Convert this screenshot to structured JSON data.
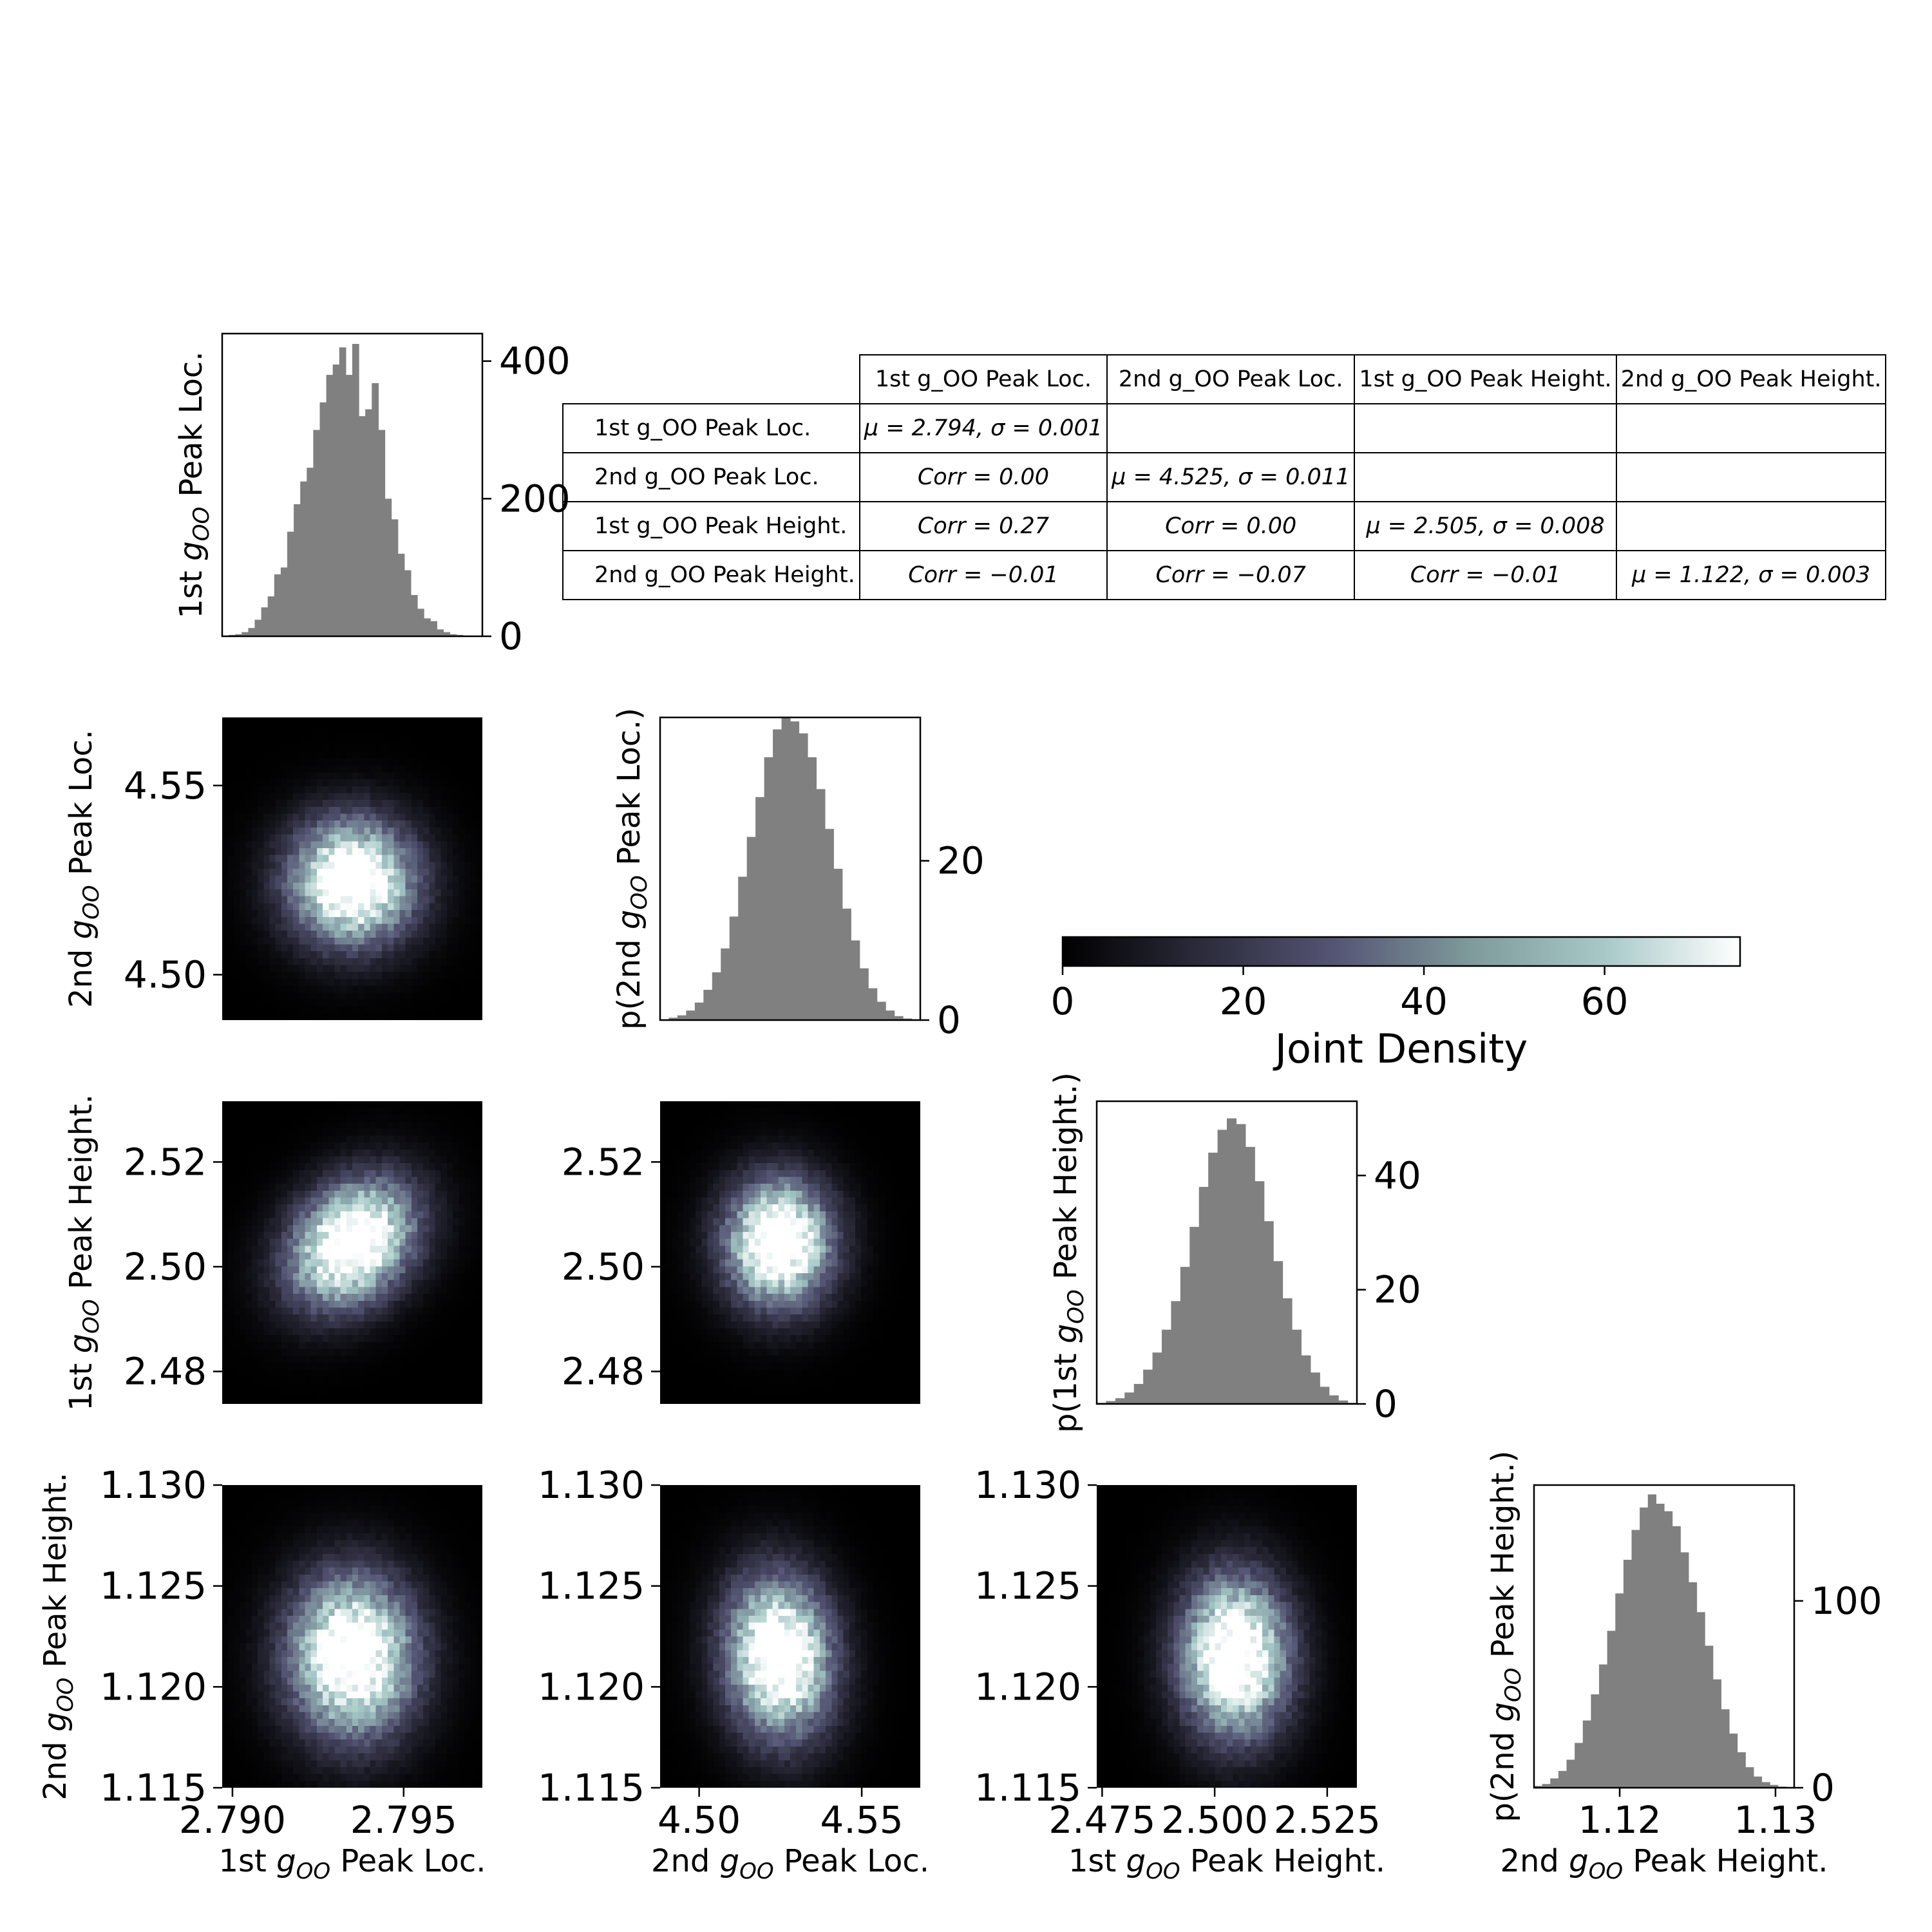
{
  "chart_data": {
    "type": "corner-plot",
    "variables": [
      "1st g_OO Peak Loc.",
      "2nd g_OO Peak Loc.",
      "1st g_OO Peak Height.",
      "2nd g_OO Peak Height."
    ],
    "diagonal_histograms": [
      {
        "variable": "1st g_OO Peak Loc.",
        "ylabel": "1st g_OO Peak Loc.",
        "y_ticks": [
          0,
          200,
          400
        ],
        "ylim": [
          0,
          440
        ],
        "xlim": [
          2.7897,
          2.7973
        ],
        "bin_heights": [
          0,
          2,
          3,
          6,
          12,
          24,
          42,
          58,
          90,
          100,
          152,
          192,
          225,
          245,
          300,
          340,
          380,
          395,
          420,
          380,
          425,
          320,
          330,
          368,
          300,
          200,
          170,
          120,
          96,
          60,
          40,
          26,
          22,
          10,
          6,
          3,
          2,
          1,
          0,
          0
        ],
        "color": "#808080"
      },
      {
        "variable": "2nd g_OO Peak Loc.",
        "ylabel": "p(2nd g_OO Peak Loc.)",
        "y_ticks": [
          0,
          20
        ],
        "ylim": [
          0,
          38
        ],
        "xlim": [
          4.488,
          4.568
        ],
        "bin_heights": [
          0.1,
          0.3,
          0.6,
          1.2,
          2.2,
          3.8,
          6,
          9,
          13,
          18,
          23,
          28,
          33,
          36.5,
          38,
          37.5,
          36,
          33,
          29,
          24,
          19,
          14,
          10,
          6.5,
          4,
          2.3,
          1.2,
          0.5,
          0.2,
          0.1
        ],
        "color": "#808080"
      },
      {
        "variable": "1st g_OO Peak Height.",
        "ylabel": "p(1st g_OO Peak Height.)",
        "y_ticks": [
          0,
          20,
          40
        ],
        "ylim": [
          0,
          53
        ],
        "xlim": [
          2.4738,
          2.5316
        ],
        "bin_heights": [
          0.2,
          0.5,
          1,
          2,
          3.5,
          6,
          9,
          13,
          18,
          24,
          31,
          38,
          44,
          48,
          50,
          49,
          45,
          39,
          32,
          25,
          18.5,
          13,
          8.5,
          5.5,
          3,
          1.5,
          0.6,
          0.2
        ],
        "color": "#808080"
      },
      {
        "variable": "2nd g_OO Peak Height.",
        "ylabel": "p(2nd g_OO Peak Height.)",
        "y_ticks": [
          0,
          100
        ],
        "ylim": [
          0,
          162
        ],
        "xlim": [
          1.1145,
          1.1312
        ],
        "bin_heights": [
          1,
          2,
          5,
          9,
          15,
          24,
          36,
          50,
          66,
          84,
          104,
          122,
          138,
          150,
          157,
          152,
          148,
          140,
          126,
          110,
          94,
          76,
          58,
          42,
          29,
          19,
          11,
          6,
          3,
          1.5,
          0.6,
          0.2
        ],
        "color": "#808080"
      }
    ],
    "joint_densities": [
      {
        "x": "1st g_OO Peak Loc.",
        "y": "2nd g_OO Peak Loc.",
        "x_mean": 2.7935,
        "y_mean": 4.5245,
        "x_sigma": 0.00125,
        "y_sigma": 0.0112,
        "corr": 0.0
      },
      {
        "x": "1st g_OO Peak Loc.",
        "y": "1st g_OO Peak Height.",
        "x_mean": 2.7935,
        "y_mean": 2.5045,
        "x_sigma": 0.00125,
        "y_sigma": 0.0082,
        "corr": 0.27
      },
      {
        "x": "2nd g_OO Peak Loc.",
        "y": "1st g_OO Peak Height.",
        "x_mean": 4.5245,
        "y_mean": 2.5045,
        "x_sigma": 0.0112,
        "y_sigma": 0.0082,
        "corr": 0.0
      },
      {
        "x": "1st g_OO Peak Loc.",
        "y": "2nd g_OO Peak Height.",
        "x_mean": 2.7935,
        "y_mean": 1.1215,
        "x_sigma": 0.00125,
        "y_sigma": 0.0027,
        "corr": -0.01
      },
      {
        "x": "2nd g_OO Peak Loc.",
        "y": "2nd g_OO Peak Height.",
        "x_mean": 4.5245,
        "y_mean": 1.1215,
        "x_sigma": 0.0112,
        "y_sigma": 0.0027,
        "corr": -0.07
      },
      {
        "x": "1st g_OO Peak Height.",
        "y": "2nd g_OO Peak Height.",
        "x_mean": 2.5045,
        "y_mean": 1.1215,
        "x_sigma": 0.0082,
        "y_sigma": 0.0027,
        "corr": -0.01
      }
    ],
    "row_axes": [
      {
        "row": 1,
        "label": "2nd g_OO Peak Loc.",
        "ticks": [
          "4.50",
          "4.55"
        ],
        "tick_values": [
          4.5,
          4.55
        ],
        "ylim": [
          4.488,
          4.568
        ]
      },
      {
        "row": 2,
        "label": "1st g_OO Peak Height.",
        "ticks": [
          "2.48",
          "2.50",
          "2.52"
        ],
        "tick_values": [
          2.48,
          2.5,
          2.52
        ],
        "ylim": [
          2.4738,
          2.5316
        ]
      },
      {
        "row": 3,
        "label": "2nd g_OO Peak Height.",
        "ticks": [
          "1.115",
          "1.120",
          "1.125",
          "1.130"
        ],
        "tick_values": [
          1.115,
          1.12,
          1.125,
          1.13
        ],
        "ylim": [
          1.115,
          1.13
        ]
      }
    ],
    "column_axes": [
      {
        "col": 0,
        "label": "1st g_OO Peak Loc.",
        "ticks": [
          "2.790",
          "2.795"
        ],
        "tick_values": [
          2.79,
          2.795
        ],
        "xlim": [
          2.7897,
          2.7973
        ]
      },
      {
        "col": 1,
        "label": "2nd g_OO Peak Loc.",
        "ticks": [
          "4.50",
          "4.55"
        ],
        "tick_values": [
          4.5,
          4.55
        ],
        "xlim": [
          4.488,
          4.568
        ]
      },
      {
        "col": 2,
        "label": "1st g_OO Peak Height.",
        "ticks": [
          "2.475",
          "2.500",
          "2.525"
        ],
        "tick_values": [
          2.475,
          2.5,
          2.525
        ],
        "xlim": [
          2.4738,
          2.5316
        ]
      },
      {
        "col": 3,
        "label": "2nd g_OO Peak Height.",
        "ticks": [
          "1.12",
          "1.13"
        ],
        "tick_values": [
          1.12,
          1.13
        ],
        "xlim": [
          1.1145,
          1.1312
        ]
      }
    ],
    "colorbar": {
      "label": "Joint Density",
      "ticks": [
        "0",
        "20",
        "40",
        "60"
      ],
      "tick_values": [
        0,
        20,
        40,
        60
      ],
      "range": [
        0,
        75
      ],
      "colormap": "bone",
      "stops": [
        "#000000",
        "#2a2a3a",
        "#545474",
        "#7e9a9a",
        "#a8c8c8",
        "#ffffff"
      ]
    },
    "stats_table": {
      "col_headers": [
        "1st g_OO Peak Loc.",
        "2nd g_OO Peak Loc.",
        "1st g_OO Peak Height.",
        "2nd g_OO Peak Height."
      ],
      "rows": [
        {
          "label": "1st g_OO Peak Loc.",
          "cells": [
            "μ = 2.794, σ = 0.001",
            "",
            "",
            ""
          ]
        },
        {
          "label": "2nd g_OO Peak Loc.",
          "cells": [
            "Corr = 0.00",
            "μ = 4.525, σ = 0.011",
            "",
            ""
          ]
        },
        {
          "label": "1st g_OO Peak Height.",
          "cells": [
            "Corr = 0.27",
            "Corr = 0.00",
            "μ = 2.505, σ = 0.008",
            ""
          ]
        },
        {
          "label": "2nd g_OO Peak Height.",
          "cells": [
            "Corr = −0.01",
            "Corr = −0.07",
            "Corr = −0.01",
            "μ = 1.122, σ = 0.003"
          ]
        }
      ]
    }
  }
}
